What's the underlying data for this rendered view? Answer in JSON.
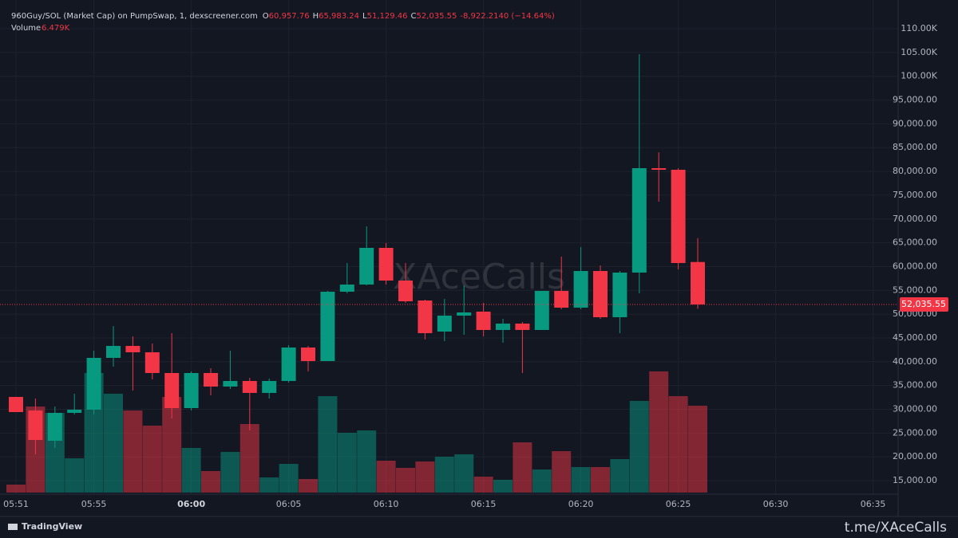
{
  "chart_data": {
    "type": "candlestick",
    "title": "960Guy/SOL (Market Cap) on PumpSwap, 1, dexscreener.com",
    "ohlc": [
      {
        "key": "O",
        "text": "60,957.76"
      },
      {
        "key": "H",
        "text": "65,983.24"
      },
      {
        "key": "L",
        "text": "51,129.46"
      },
      {
        "key": "C",
        "text": "52,035.55"
      }
    ],
    "change": "-8,922.2140 (−14.64%)",
    "volume_name": "Volume",
    "volume_text": "6.479K",
    "categories": [
      "05:51",
      "05:52",
      "05:53",
      "05:54",
      "05:55",
      "05:56",
      "05:57",
      "05:58",
      "05:59",
      "06:00",
      "06:01",
      "06:02",
      "06:03",
      "06:04",
      "06:05",
      "06:06",
      "06:07",
      "06:08",
      "06:09",
      "06:10",
      "06:11",
      "06:12",
      "06:13",
      "06:14",
      "06:15",
      "06:16",
      "06:17",
      "06:18",
      "06:19",
      "06:20",
      "06:21",
      "06:22",
      "06:23",
      "06:24",
      "06:25",
      "06:26"
    ],
    "open": [
      32594,
      29745,
      23378,
      29242,
      29913,
      40805,
      43318,
      41978,
      37621,
      30248,
      37621,
      34772,
      35945,
      33432,
      35945,
      42983,
      40134,
      54712,
      56220,
      63928,
      57058,
      52869,
      46334,
      49685,
      50523,
      46669,
      48010,
      46669,
      54880,
      51361,
      59068,
      49350,
      58733,
      80683,
      80348,
      60957.76
    ],
    "high": [
      32600,
      32260,
      30583,
      33264,
      42313,
      47507,
      45329,
      43821,
      46000,
      37956,
      38626,
      42313,
      36616,
      36448,
      43486,
      43318,
      54880,
      60744,
      68452,
      64933,
      60744,
      53036,
      53204,
      56052,
      52366,
      49015,
      48345,
      54880,
      62084,
      64095,
      60241,
      59068,
      104644,
      84036,
      80683,
      65983.24
    ],
    "low": [
      29400,
      20530,
      21870,
      28907,
      28907,
      38961,
      33935,
      36281,
      28070,
      29745,
      32930,
      34270,
      25557,
      32260,
      35610,
      37956,
      40134,
      54377,
      56052,
      56220,
      52366,
      44659,
      44324,
      45664,
      45329,
      43989,
      37621,
      46669,
      51026,
      51026,
      49015,
      45999,
      54377,
      73647,
      59403,
      51129.46
    ],
    "close": [
      29410,
      23546,
      29242,
      29913,
      40805,
      43318,
      41978,
      37621,
      30248,
      37621,
      34772,
      35945,
      33432,
      35945,
      42983,
      40134,
      54712,
      56220,
      63928,
      57058,
      52701,
      45999,
      49685,
      50355,
      46669,
      48010,
      46669,
      54880,
      51361,
      59068,
      49350,
      58733,
      80683,
      80348,
      60744,
      52035.55
    ],
    "volume": [
      594,
      6420,
      5944,
      2556,
      8916,
      7371,
      6122,
      4993,
      7133,
      3329,
      1605,
      3031,
      5112,
      1129,
      2140,
      1010,
      7192,
      4458,
      4636,
      2378,
      1843,
      2318,
      2675,
      2853,
      1189,
      951,
      3745,
      1724,
      3091,
      1902,
      1902,
      2497,
      6836,
      9035,
      7192,
      6479
    ],
    "up_color": "#089981",
    "down_color": "#f23645",
    "ylim": [
      12150,
      116040
    ],
    "yticks": [
      {
        "value": 15000,
        "label": "15,000.00"
      },
      {
        "value": 20000,
        "label": "20,000.00"
      },
      {
        "value": 25000,
        "label": "25,000.00"
      },
      {
        "value": 30000,
        "label": "30,000.00"
      },
      {
        "value": 35000,
        "label": "35,000.00"
      },
      {
        "value": 40000,
        "label": "40,000.00"
      },
      {
        "value": 45000,
        "label": "45,000.00"
      },
      {
        "value": 50000,
        "label": "50,000.00"
      },
      {
        "value": 55000,
        "label": "55,000.00"
      },
      {
        "value": 60000,
        "label": "60,000.00"
      },
      {
        "value": 65000,
        "label": "65,000.00"
      },
      {
        "value": 70000,
        "label": "70,000.00"
      },
      {
        "value": 75000,
        "label": "75,000.00"
      },
      {
        "value": 80000,
        "label": "80,000.00"
      },
      {
        "value": 85000,
        "label": "85,000.00"
      },
      {
        "value": 90000,
        "label": "90,000.00"
      },
      {
        "value": 95000,
        "label": "95,000.00"
      },
      {
        "value": 100000,
        "label": "100.00K"
      },
      {
        "value": 105000,
        "label": "105.00K"
      },
      {
        "value": 110000,
        "label": "110.00K"
      }
    ],
    "xticks": [
      "05:51",
      "05:55",
      "06:00",
      "06:05",
      "06:10",
      "06:15",
      "06:20",
      "06:25",
      "06:30",
      "06:35"
    ],
    "grid": true,
    "watermark": "XAceCalls",
    "brand": "TradingView",
    "footer": "t.me/XAceCalls"
  }
}
